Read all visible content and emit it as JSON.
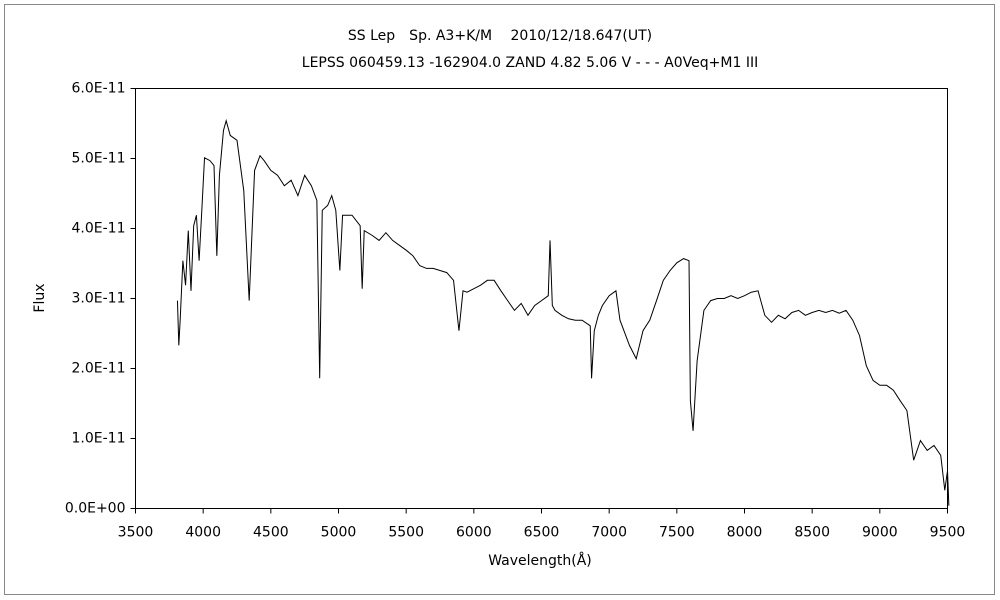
{
  "chart_data": {
    "type": "line",
    "title": "SS Lep　Sp. A3+K/M　 2010/12/18.647(UT)",
    "subtitle": "LEPSS 060459.13 -162904.0 ZAND 4.82 5.06 V - - - A0Veq+M1 III",
    "xlabel": "Wavelength(Å)",
    "ylabel": "Flux",
    "color": "#000000",
    "grid": false,
    "x": [
      3810,
      3820,
      3830,
      3850,
      3870,
      3890,
      3910,
      3930,
      3950,
      3970,
      3990,
      4010,
      4050,
      4080,
      4101,
      4120,
      4150,
      4170,
      4200,
      4250,
      4300,
      4340,
      4380,
      4420,
      4450,
      4500,
      4550,
      4600,
      4650,
      4700,
      4750,
      4800,
      4840,
      4861,
      4880,
      4920,
      4950,
      4980,
      5010,
      5030,
      5100,
      5160,
      5175,
      5190,
      5250,
      5300,
      5350,
      5400,
      5450,
      5500,
      5550,
      5600,
      5650,
      5700,
      5750,
      5800,
      5850,
      5890,
      5920,
      5950,
      6000,
      6050,
      6100,
      6150,
      6200,
      6250,
      6300,
      6350,
      6400,
      6450,
      6500,
      6550,
      6563,
      6580,
      6600,
      6650,
      6700,
      6750,
      6800,
      6860,
      6870,
      6890,
      6920,
      6950,
      7000,
      7050,
      7080,
      7150,
      7200,
      7250,
      7300,
      7350,
      7400,
      7450,
      7500,
      7550,
      7590,
      7600,
      7620,
      7650,
      7700,
      7750,
      7800,
      7850,
      7900,
      7950,
      8000,
      8050,
      8100,
      8150,
      8200,
      8250,
      8300,
      8350,
      8400,
      8450,
      8500,
      8550,
      8600,
      8650,
      8700,
      8750,
      8800,
      8850,
      8900,
      8950,
      9000,
      9050,
      9100,
      9150,
      9200,
      9250,
      9300,
      9350,
      9400,
      9450,
      9480,
      9500,
      9510
    ],
    "values": [
      2.97e-11,
      2.33e-11,
      2.69e-11,
      3.54e-11,
      3.19e-11,
      3.97e-11,
      3.11e-11,
      4.04e-11,
      4.19e-11,
      3.54e-11,
      4.26e-11,
      5.01e-11,
      4.97e-11,
      4.9e-11,
      3.61e-11,
      4.76e-11,
      5.4e-11,
      5.54e-11,
      5.33e-11,
      5.26e-11,
      4.54e-11,
      2.97e-11,
      4.83e-11,
      5.04e-11,
      4.97e-11,
      4.83e-11,
      4.76e-11,
      4.61e-11,
      4.69e-11,
      4.47e-11,
      4.76e-11,
      4.61e-11,
      4.4e-11,
      1.86e-11,
      4.26e-11,
      4.33e-11,
      4.47e-11,
      4.26e-11,
      3.4e-11,
      4.19e-11,
      4.19e-11,
      4.04e-11,
      3.14e-11,
      3.97e-11,
      3.9e-11,
      3.83e-11,
      3.94e-11,
      3.83e-11,
      3.76e-11,
      3.69e-11,
      3.61e-11,
      3.47e-11,
      3.43e-11,
      3.43e-11,
      3.4e-11,
      3.37e-11,
      3.26e-11,
      2.54e-11,
      3.11e-11,
      3.09e-11,
      3.14e-11,
      3.19e-11,
      3.26e-11,
      3.26e-11,
      3.11e-11,
      2.97e-11,
      2.83e-11,
      2.93e-11,
      2.76e-11,
      2.9e-11,
      2.97e-11,
      3.04e-11,
      3.83e-11,
      2.9e-11,
      2.83e-11,
      2.76e-11,
      2.71e-11,
      2.69e-11,
      2.69e-11,
      2.61e-11,
      1.86e-11,
      2.54e-11,
      2.76e-11,
      2.9e-11,
      3.04e-11,
      3.11e-11,
      2.69e-11,
      2.33e-11,
      2.14e-11,
      2.54e-11,
      2.69e-11,
      2.97e-11,
      3.26e-11,
      3.4e-11,
      3.51e-11,
      3.57e-11,
      3.54e-11,
      1.54e-11,
      1.11e-11,
      2.11e-11,
      2.83e-11,
      2.97e-11,
      3e-11,
      3e-11,
      3.04e-11,
      3e-11,
      3.04e-11,
      3.09e-11,
      3.11e-11,
      2.76e-11,
      2.66e-11,
      2.76e-11,
      2.71e-11,
      2.8e-11,
      2.83e-11,
      2.76e-11,
      2.8e-11,
      2.83e-11,
      2.8e-11,
      2.83e-11,
      2.79e-11,
      2.83e-11,
      2.69e-11,
      2.47e-11,
      2.04e-11,
      1.83e-11,
      1.76e-11,
      1.76e-11,
      1.69e-11,
      1.54e-11,
      1.4e-11,
      6.9e-12,
      9.7e-12,
      8.3e-12,
      9e-12,
      7.6e-12,
      2.6e-12,
      5.4e-12,
      4e-13
    ],
    "xlim": [
      3500,
      9500
    ],
    "xticks": [
      3500,
      4000,
      4500,
      5000,
      5500,
      6000,
      6500,
      7000,
      7500,
      8000,
      8500,
      9000,
      9500
    ],
    "ylim": [
      0,
      6e-11
    ],
    "yticks": [
      {
        "value": 0,
        "label": "0.0E+00"
      },
      {
        "value": 1e-11,
        "label": "1.0E-11"
      },
      {
        "value": 2e-11,
        "label": "2.0E-11"
      },
      {
        "value": 3e-11,
        "label": "3.0E-11"
      },
      {
        "value": 4e-11,
        "label": "4.0E-11"
      },
      {
        "value": 5e-11,
        "label": "5.0E-11"
      },
      {
        "value": 6e-11,
        "label": "6.0E-11"
      }
    ]
  }
}
